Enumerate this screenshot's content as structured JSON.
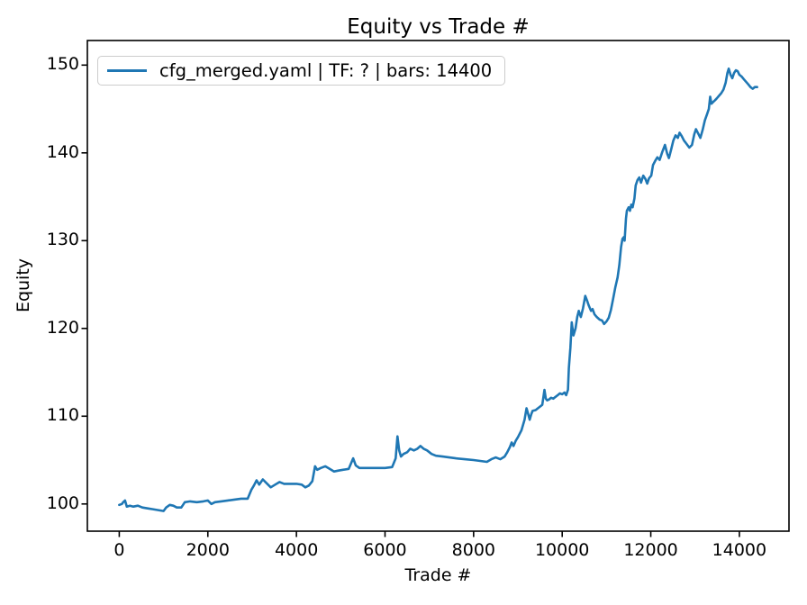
{
  "chart_data": {
    "type": "line",
    "title": "Equity vs Trade #",
    "xlabel": "Trade #",
    "ylabel": "Equity",
    "grid": false,
    "legend": {
      "position": "upper-left",
      "entries": [
        {
          "label": "cfg_merged.yaml | TF: ? | bars: 14400",
          "color": "#1f77b4"
        }
      ]
    },
    "line_color": "#1f77b4",
    "axis_color": "#000000",
    "background_color": "#ffffff",
    "xticks": [
      0,
      2000,
      4000,
      6000,
      8000,
      10000,
      12000,
      14000
    ],
    "yticks": [
      100,
      110,
      120,
      130,
      140,
      150
    ],
    "xlim": [
      -720,
      15120
    ],
    "ylim": [
      96.9,
      152.8
    ],
    "series": [
      {
        "name": "cfg_merged.yaml | TF: ? | bars: 14400",
        "points": [
          [
            0,
            99.9
          ],
          [
            60,
            100.0
          ],
          [
            90,
            100.2
          ],
          [
            130,
            100.4
          ],
          [
            170,
            99.7
          ],
          [
            240,
            99.8
          ],
          [
            320,
            99.7
          ],
          [
            420,
            99.8
          ],
          [
            520,
            99.6
          ],
          [
            640,
            99.5
          ],
          [
            760,
            99.4
          ],
          [
            880,
            99.3
          ],
          [
            1000,
            99.2
          ],
          [
            1060,
            99.6
          ],
          [
            1140,
            99.9
          ],
          [
            1220,
            99.8
          ],
          [
            1300,
            99.6
          ],
          [
            1400,
            99.6
          ],
          [
            1480,
            100.2
          ],
          [
            1600,
            100.3
          ],
          [
            1750,
            100.2
          ],
          [
            1900,
            100.3
          ],
          [
            2000,
            100.4
          ],
          [
            2080,
            100.0
          ],
          [
            2160,
            100.2
          ],
          [
            2300,
            100.3
          ],
          [
            2450,
            100.4
          ],
          [
            2600,
            100.5
          ],
          [
            2750,
            100.6
          ],
          [
            2900,
            100.6
          ],
          [
            2980,
            101.6
          ],
          [
            3040,
            102.1
          ],
          [
            3100,
            102.7
          ],
          [
            3160,
            102.2
          ],
          [
            3240,
            102.8
          ],
          [
            3320,
            102.4
          ],
          [
            3420,
            101.9
          ],
          [
            3520,
            102.2
          ],
          [
            3620,
            102.5
          ],
          [
            3720,
            102.3
          ],
          [
            3850,
            102.3
          ],
          [
            4000,
            102.3
          ],
          [
            4120,
            102.2
          ],
          [
            4200,
            101.9
          ],
          [
            4280,
            102.1
          ],
          [
            4360,
            102.6
          ],
          [
            4420,
            104.3
          ],
          [
            4470,
            103.9
          ],
          [
            4550,
            104.1
          ],
          [
            4650,
            104.3
          ],
          [
            4750,
            104.0
          ],
          [
            4850,
            103.7
          ],
          [
            4950,
            103.8
          ],
          [
            5050,
            103.9
          ],
          [
            5180,
            104.0
          ],
          [
            5280,
            105.2
          ],
          [
            5340,
            104.4
          ],
          [
            5420,
            104.1
          ],
          [
            5600,
            104.1
          ],
          [
            5800,
            104.1
          ],
          [
            6000,
            104.1
          ],
          [
            6160,
            104.2
          ],
          [
            6240,
            105.2
          ],
          [
            6280,
            107.7
          ],
          [
            6320,
            106.1
          ],
          [
            6360,
            105.4
          ],
          [
            6420,
            105.7
          ],
          [
            6500,
            105.9
          ],
          [
            6570,
            106.3
          ],
          [
            6650,
            106.1
          ],
          [
            6730,
            106.3
          ],
          [
            6800,
            106.6
          ],
          [
            6870,
            106.3
          ],
          [
            6950,
            106.1
          ],
          [
            7050,
            105.7
          ],
          [
            7150,
            105.5
          ],
          [
            7300,
            105.4
          ],
          [
            7450,
            105.3
          ],
          [
            7600,
            105.2
          ],
          [
            7800,
            105.1
          ],
          [
            8000,
            105.0
          ],
          [
            8150,
            104.9
          ],
          [
            8300,
            104.8
          ],
          [
            8400,
            105.1
          ],
          [
            8500,
            105.3
          ],
          [
            8600,
            105.1
          ],
          [
            8700,
            105.4
          ],
          [
            8760,
            105.9
          ],
          [
            8820,
            106.5
          ],
          [
            8860,
            107.0
          ],
          [
            8900,
            106.6
          ],
          [
            8950,
            107.2
          ],
          [
            9000,
            107.6
          ],
          [
            9080,
            108.4
          ],
          [
            9150,
            109.6
          ],
          [
            9195,
            110.9
          ],
          [
            9230,
            110.3
          ],
          [
            9265,
            109.6
          ],
          [
            9300,
            110.2
          ],
          [
            9330,
            110.6
          ],
          [
            9400,
            110.7
          ],
          [
            9450,
            110.9
          ],
          [
            9500,
            111.1
          ],
          [
            9550,
            111.3
          ],
          [
            9600,
            113.0
          ],
          [
            9630,
            112.0
          ],
          [
            9660,
            111.8
          ],
          [
            9700,
            111.9
          ],
          [
            9750,
            112.1
          ],
          [
            9800,
            112.0
          ],
          [
            9850,
            112.2
          ],
          [
            9900,
            112.4
          ],
          [
            9950,
            112.6
          ],
          [
            10000,
            112.5
          ],
          [
            10050,
            112.7
          ],
          [
            10090,
            112.4
          ],
          [
            10130,
            113.0
          ],
          [
            10150,
            115.5
          ],
          [
            10185,
            117.8
          ],
          [
            10215,
            120.7
          ],
          [
            10255,
            119.2
          ],
          [
            10300,
            120.0
          ],
          [
            10340,
            121.3
          ],
          [
            10375,
            122.0
          ],
          [
            10420,
            121.3
          ],
          [
            10470,
            122.3
          ],
          [
            10520,
            123.7
          ],
          [
            10560,
            123.2
          ],
          [
            10600,
            122.6
          ],
          [
            10650,
            122.0
          ],
          [
            10685,
            122.2
          ],
          [
            10730,
            121.6
          ],
          [
            10780,
            121.3
          ],
          [
            10845,
            121.0
          ],
          [
            10900,
            120.9
          ],
          [
            10945,
            120.5
          ],
          [
            11000,
            120.8
          ],
          [
            11050,
            121.2
          ],
          [
            11100,
            122.1
          ],
          [
            11150,
            123.4
          ],
          [
            11200,
            124.7
          ],
          [
            11250,
            125.8
          ],
          [
            11290,
            127.2
          ],
          [
            11330,
            129.3
          ],
          [
            11360,
            130.2
          ],
          [
            11390,
            130.4
          ],
          [
            11410,
            130.0
          ],
          [
            11440,
            132.5
          ],
          [
            11460,
            133.4
          ],
          [
            11500,
            133.8
          ],
          [
            11530,
            133.4
          ],
          [
            11560,
            134.1
          ],
          [
            11590,
            133.8
          ],
          [
            11630,
            134.8
          ],
          [
            11660,
            136.3
          ],
          [
            11700,
            136.9
          ],
          [
            11740,
            137.2
          ],
          [
            11780,
            136.6
          ],
          [
            11830,
            137.4
          ],
          [
            11880,
            137.0
          ],
          [
            11920,
            136.5
          ],
          [
            11960,
            137.1
          ],
          [
            12010,
            137.4
          ],
          [
            12050,
            138.6
          ],
          [
            12100,
            139.1
          ],
          [
            12150,
            139.5
          ],
          [
            12200,
            139.2
          ],
          [
            12260,
            140.1
          ],
          [
            12320,
            140.9
          ],
          [
            12370,
            139.9
          ],
          [
            12410,
            139.4
          ],
          [
            12460,
            140.4
          ],
          [
            12510,
            141.4
          ],
          [
            12560,
            142.0
          ],
          [
            12610,
            141.7
          ],
          [
            12650,
            142.3
          ],
          [
            12700,
            141.9
          ],
          [
            12750,
            141.4
          ],
          [
            12810,
            141.0
          ],
          [
            12870,
            140.6
          ],
          [
            12930,
            140.9
          ],
          [
            12980,
            142.1
          ],
          [
            13020,
            142.7
          ],
          [
            13070,
            142.2
          ],
          [
            13120,
            141.7
          ],
          [
            13170,
            142.6
          ],
          [
            13220,
            143.7
          ],
          [
            13270,
            144.4
          ],
          [
            13310,
            145.0
          ],
          [
            13340,
            146.4
          ],
          [
            13370,
            145.6
          ],
          [
            13410,
            145.8
          ],
          [
            13450,
            146.0
          ],
          [
            13490,
            146.2
          ],
          [
            13540,
            146.5
          ],
          [
            13590,
            146.8
          ],
          [
            13640,
            147.2
          ],
          [
            13690,
            148.0
          ],
          [
            13730,
            149.1
          ],
          [
            13760,
            149.6
          ],
          [
            13800,
            148.9
          ],
          [
            13840,
            148.5
          ],
          [
            13880,
            149.1
          ],
          [
            13920,
            149.4
          ],
          [
            13960,
            149.3
          ],
          [
            14000,
            148.9
          ],
          [
            14050,
            148.7
          ],
          [
            14100,
            148.4
          ],
          [
            14150,
            148.1
          ],
          [
            14200,
            147.8
          ],
          [
            14250,
            147.5
          ],
          [
            14300,
            147.3
          ],
          [
            14350,
            147.5
          ],
          [
            14400,
            147.5
          ]
        ]
      }
    ]
  }
}
